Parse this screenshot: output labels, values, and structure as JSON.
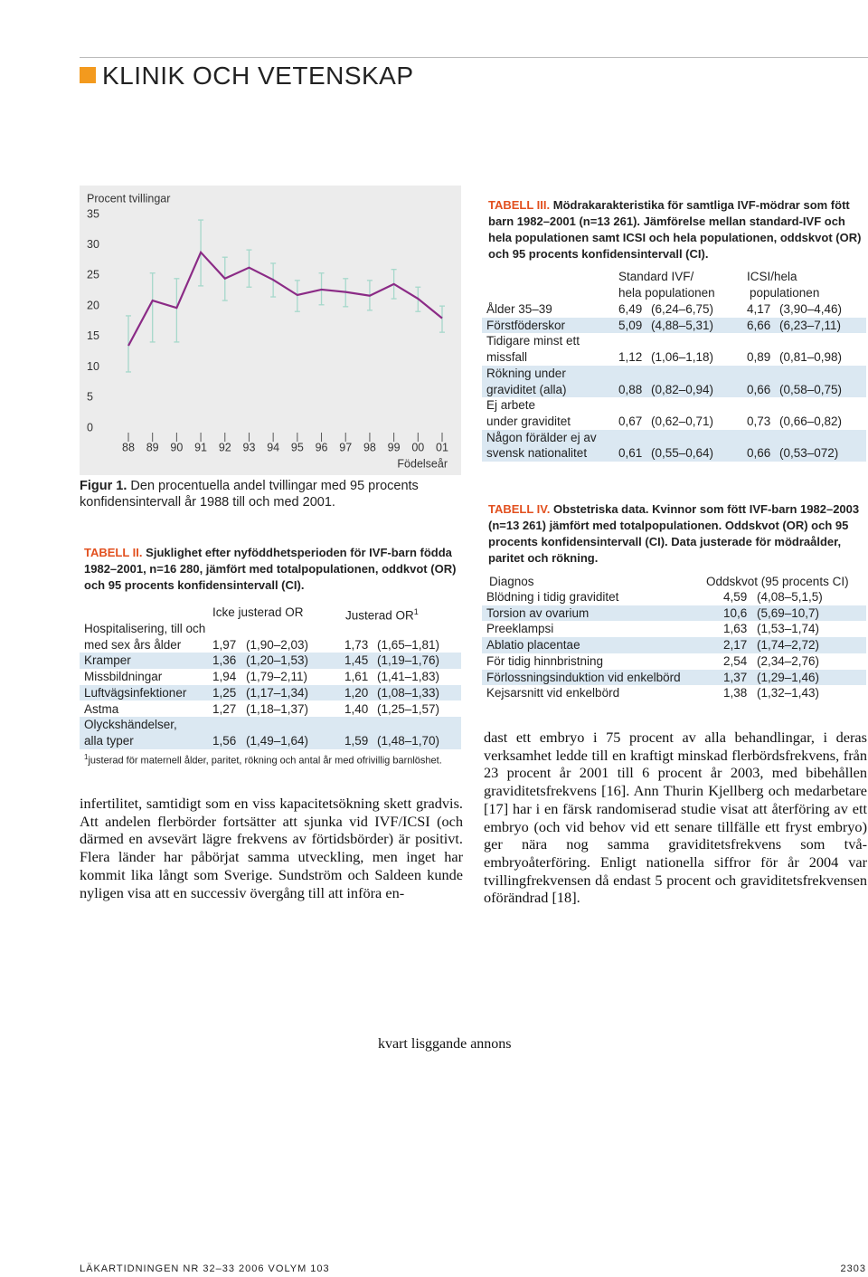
{
  "header": {
    "section": "KLINIK OCH VETENSKAP"
  },
  "chart_data": {
    "type": "line",
    "y_label": "Procent tvillingar",
    "x_label": "Födelseår",
    "categories": [
      "88",
      "89",
      "90",
      "91",
      "92",
      "93",
      "94",
      "95",
      "96",
      "97",
      "98",
      "99",
      "00",
      "01"
    ],
    "series": [
      {
        "color": "#8b2b86",
        "error_color": "#a6d8cb",
        "values": [
          13.5,
          20.9,
          19.7,
          28.8,
          24.5,
          26.3,
          24.3,
          21.8,
          22.7,
          22.3,
          21.7,
          23.6,
          21.2,
          18.0
        ],
        "lower": [
          9.2,
          14.1,
          14.1,
          23.3,
          20.9,
          23.1,
          21.5,
          19.1,
          20.2,
          19.9,
          19.3,
          21.2,
          19.1,
          15.7
        ],
        "upper": [
          18.4,
          25.4,
          24.5,
          34.1,
          28.0,
          29.2,
          27.0,
          24.2,
          25.4,
          24.5,
          24.2,
          26.0,
          23.1,
          20.0
        ]
      }
    ],
    "ylim": [
      0,
      35
    ],
    "yticks": [
      0,
      5,
      10,
      15,
      20,
      25,
      30,
      35
    ]
  },
  "figure_caption": {
    "label": "Figur 1.",
    "text": "Den procentuella andel tvillingar med 95 procents konfidensintervall år 1988 till och med 2001."
  },
  "table_2": {
    "label": "TABELL II.",
    "caption": "Sjuklighet efter nyföddhetsperioden för IVF-barn födda 1982–2001, n=16 280, jämfört med totalpopulationen, oddkvot (OR) och 95 procents konfidensintervall (CI).",
    "columns": [
      "Icke justerad OR",
      "Justerad OR"
    ],
    "column_marker": "1",
    "rows": [
      {
        "label": [
          "Hospitalisering, till och",
          "med sex års ålder"
        ],
        "cells": [
          "1,97",
          "(1,90–2,03)",
          "1,73",
          "(1,65–1,81)"
        ]
      },
      {
        "label": [
          "Kramper"
        ],
        "cells": [
          "1,36",
          "(1,20–1,53)",
          "1,45",
          "(1,19–1,76)"
        ]
      },
      {
        "label": [
          "Missbildningar"
        ],
        "cells": [
          "1,94",
          "(1,79–2,11)",
          "1,61",
          "(1,41–1,83)"
        ]
      },
      {
        "label": [
          "Luftvägsinfektioner"
        ],
        "cells": [
          "1,25",
          "(1,17–1,34)",
          "1,20",
          "(1,08–1,33)"
        ]
      },
      {
        "label": [
          "Astma"
        ],
        "cells": [
          "1,27",
          "(1,18–1,37)",
          "1,40",
          "(1,25–1,57)"
        ]
      },
      {
        "label": [
          "Olyckshändelser,",
          "alla typer"
        ],
        "cells": [
          "1,56",
          "(1,49–1,64)",
          "1,59",
          "(1,48–1,70)"
        ]
      }
    ],
    "footnote": {
      "marker": "1",
      "text": "justerad för maternell ålder, paritet, rökning och antal år med ofrivillig barnlöshet."
    }
  },
  "table_3": {
    "label": "TABELL III.",
    "caption": "Mödrakarakteristika för samtliga IVF-mödrar som fött barn 1982–2001 (n=13 261). Jämförelse mellan standard-IVF och hela populationen samt ICSI och hela populationen, oddskvot (OR) och 95 procents konfidensintervall (CI).",
    "columns": [
      [
        "Standard IVF/",
        "hela populationen"
      ],
      [
        "ICSI/hela",
        "populationen"
      ]
    ],
    "rows": [
      {
        "label": [
          "Ålder 35–39"
        ],
        "cells": [
          "6,49",
          "(6,24–6,75)",
          "4,17",
          "(3,90–4,46)"
        ]
      },
      {
        "label": [
          "Förstföderskor"
        ],
        "cells": [
          "5,09",
          "(4,88–5,31)",
          "6,66",
          "(6,23–7,11)"
        ]
      },
      {
        "label": [
          "Tidigare minst ett",
          "missfall"
        ],
        "cells": [
          "1,12",
          "(1,06–1,18)",
          "0,89",
          "(0,81–0,98)"
        ]
      },
      {
        "label": [
          "Rökning under",
          "graviditet (alla)"
        ],
        "cells": [
          "0,88",
          "(0,82–0,94)",
          "0,66",
          "(0,58–0,75)"
        ]
      },
      {
        "label": [
          "Ej arbete",
          "under graviditet"
        ],
        "cells": [
          "0,67",
          "(0,62–0,71)",
          "0,73",
          "(0,66–0,82)"
        ]
      },
      {
        "label": [
          "Någon förälder ej av",
          "svensk nationalitet"
        ],
        "cells": [
          "0,61",
          "(0,55–0,64)",
          "0,66",
          "(0,53–072)"
        ]
      }
    ]
  },
  "table_4": {
    "label": "TABELL IV.",
    "caption": "Obstetriska data. Kvinnor som fött IVF-barn 1982–2003 (n=13 261) jämfört med totalpopulationen. Oddskvot (OR) och 95 procents konfidensintervall (CI). Data justerade för mödraålder, paritet och rökning.",
    "columns": [
      "Diagnos",
      "Oddskvot (95 procents CI)"
    ],
    "rows": [
      {
        "label": [
          "Blödning i tidig graviditet"
        ],
        "cells": [
          "4,59",
          "(4,08–5,1,5)"
        ]
      },
      {
        "label": [
          "Torsion av ovarium"
        ],
        "cells": [
          "10,6",
          "(5,69–10,7)"
        ]
      },
      {
        "label": [
          "Preeklampsi"
        ],
        "cells": [
          "1,63",
          "(1,53–1,74)"
        ]
      },
      {
        "label": [
          "Ablatio placentae"
        ],
        "cells": [
          "2,17",
          "(1,74–2,72)"
        ]
      },
      {
        "label": [
          "För tidig hinnbristning"
        ],
        "cells": [
          "2,54",
          "(2,34–2,76)"
        ]
      },
      {
        "label": [
          "Förlossningsinduktion vid enkelbörd"
        ],
        "cells": [
          "1,37",
          "(1,29–1,46)"
        ]
      },
      {
        "label": [
          "Kejsarsnitt vid enkelbörd"
        ],
        "cells": [
          "1,38",
          "(1,32–1,43)"
        ]
      }
    ]
  },
  "body_left": "infertilitet, samtidigt som en viss kapacitetsökning skett gradvis. Att andelen flerbörder fortsätter att sjunka vid IVF/ICSI (och därmed en avsevärt lägre frekvens av förtidsbörder) är positivt. Flera länder har påbörjat samma utveckling, men inget har kommit lika långt som Sverige. Sundström och Saldeen kunde nyligen visa att en successiv övergång till att införa en-",
  "body_right": "dast ett embryo i 75 procent av alla behandlingar, i deras verksamhet ledde till en kraftigt minskad flerbördsfrekvens, från 23 procent år 2001 till 6 procent år 2003, med bibehållen graviditetsfrekvens [16]. Ann Thurin Kjellberg och medarbetare [17] har i en färsk randomiserad studie visat att återföring av ett embryo (och vid behov vid ett senare tillfälle ett fryst embryo) ger nära nog samma graviditetsfrekvens som två-embryoåterföring. Enligt nationella siffror för år 2004 var tvillingfrekvensen då endast 5 procent och graviditetsfrekvensen oförändrad [18].",
  "ad": "kvart lisggande annons",
  "footer": {
    "journal": "LÄKARTIDNINGEN NR 32–33 2006 VOLYM 103",
    "page": "2303"
  }
}
